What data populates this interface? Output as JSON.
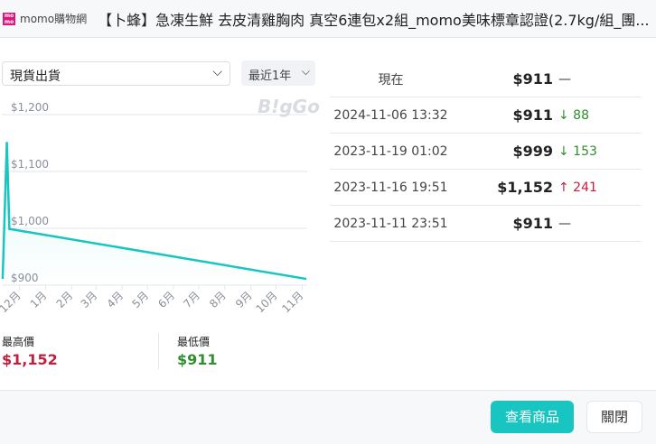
{
  "header": {
    "logo_text": "momo",
    "store": "momo購物網",
    "title": "【卜蜂】急凍生鮮 去皮清雞胸肉 真空6連包x2組_momo美味標章認證(2.7kg/組_團..."
  },
  "filter": {
    "selected": "現貨出貨",
    "range": "最近1年"
  },
  "watermark": "B!gGo",
  "chart_data": {
    "type": "line",
    "x": [
      "2023-11-11",
      "2023-11-16",
      "2023-11-19",
      "2024-11-06"
    ],
    "values": [
      911,
      1152,
      999,
      911
    ],
    "ylim": [
      900,
      1200
    ],
    "yticks": [
      "$1,200",
      "$1,100",
      "$1,000",
      "$900"
    ],
    "ytick_values": [
      1200,
      1100,
      1000,
      900
    ],
    "xticks": [
      "12月",
      "1月",
      "2月",
      "3月",
      "4月",
      "5月",
      "6月",
      "7月",
      "8月",
      "9月",
      "10月",
      "11月"
    ],
    "grid": true,
    "line_color": "#18c5c0"
  },
  "stats": {
    "max_label": "最高價",
    "max_value": "$1,152",
    "min_label": "最低價",
    "min_value": "$911"
  },
  "history": [
    {
      "date": "現在",
      "price": "$911",
      "change": "—",
      "dir": "none"
    },
    {
      "date": "2024-11-06 13:32",
      "price": "$911",
      "change": "↓ 88",
      "dir": "down"
    },
    {
      "date": "2023-11-19 01:02",
      "price": "$999",
      "change": "↓ 153",
      "dir": "down"
    },
    {
      "date": "2023-11-16 19:51",
      "price": "$1,152",
      "change": "↑ 241",
      "dir": "up"
    },
    {
      "date": "2023-11-11 23:51",
      "price": "$911",
      "change": "—",
      "dir": "none"
    }
  ],
  "buttons": {
    "view": "查看商品",
    "close": "關閉"
  }
}
